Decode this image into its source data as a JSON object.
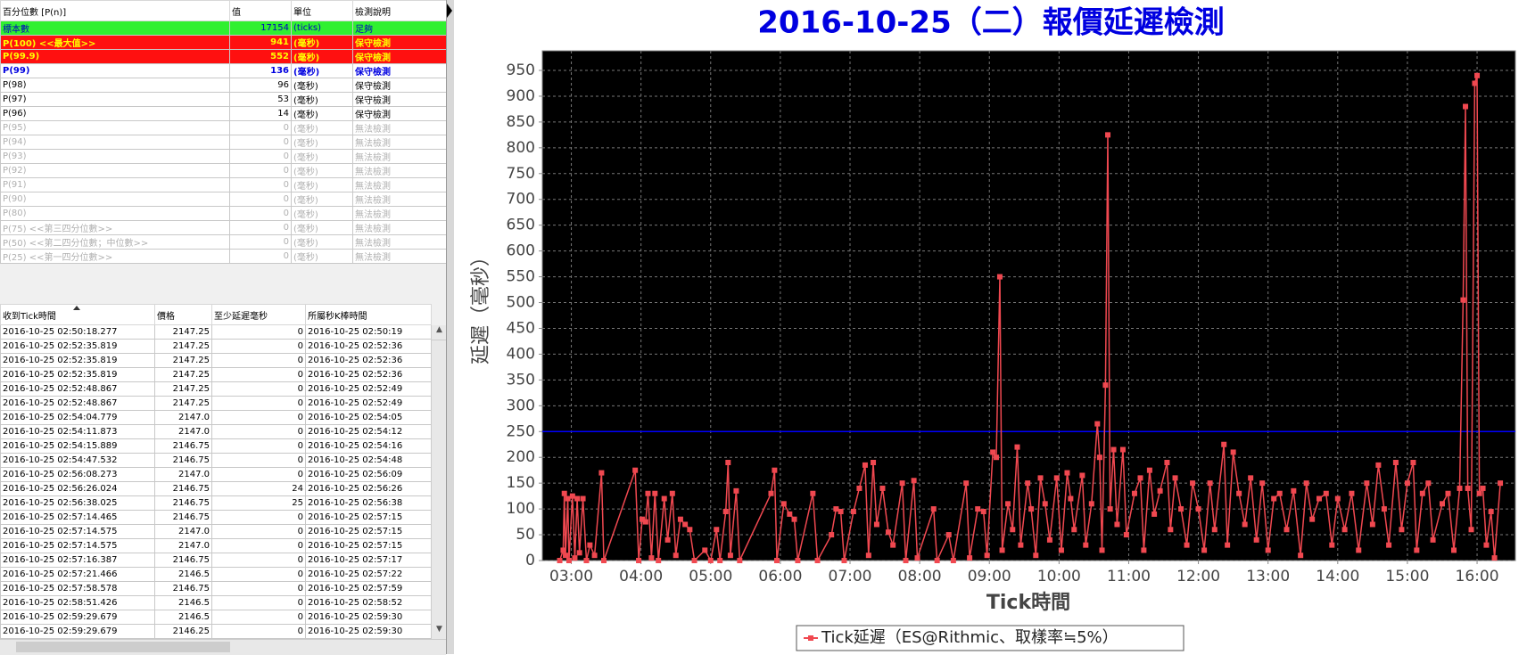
{
  "percentile_table": {
    "headers": [
      "百分位數 [P(n)]",
      "值",
      "單位",
      "檢測說明"
    ],
    "rows": [
      [
        "標本數",
        17154,
        "(ticks)",
        "足夠"
      ],
      [
        "P(100)  <<最大值>>",
        941,
        "(毫秒)",
        "保守檢測"
      ],
      [
        "P(99.9)",
        552,
        "(毫秒)",
        "保守檢測"
      ],
      [
        "P(99)",
        136,
        "(毫秒)",
        "保守檢測"
      ],
      [
        "P(98)",
        96,
        "(毫秒)",
        "保守檢測"
      ],
      [
        "P(97)",
        53,
        "(毫秒)",
        "保守檢測"
      ],
      [
        "P(96)",
        14,
        "(毫秒)",
        "保守檢測"
      ],
      [
        "P(95)",
        0,
        "(毫秒)",
        "無法檢測"
      ],
      [
        "P(94)",
        0,
        "(毫秒)",
        "無法檢測"
      ],
      [
        "P(93)",
        0,
        "(毫秒)",
        "無法檢測"
      ],
      [
        "P(92)",
        0,
        "(毫秒)",
        "無法檢測"
      ],
      [
        "P(91)",
        0,
        "(毫秒)",
        "無法檢測"
      ],
      [
        "P(90)",
        0,
        "(毫秒)",
        "無法檢測"
      ],
      [
        "P(80)",
        0,
        "(毫秒)",
        "無法檢測"
      ],
      [
        "P(75)  <<第三四分位數>>",
        0,
        "(毫秒)",
        "無法檢測"
      ],
      [
        "P(50)  <<第二四分位數；中位數>>",
        0,
        "(毫秒)",
        "無法檢測"
      ],
      [
        "P(25)  <<第一四分位數>>",
        0,
        "(毫秒)",
        "無法檢測"
      ]
    ]
  },
  "tick_table": {
    "headers": [
      "收到Tick時間",
      "價格",
      "至少延遲毫秒",
      "所屬秒K棒時間"
    ],
    "rows": [
      [
        "2016-10-25 02:50:18.277",
        "2147.25",
        "0",
        "2016-10-25 02:50:19"
      ],
      [
        "2016-10-25 02:52:35.819",
        "2147.25",
        "0",
        "2016-10-25 02:52:36"
      ],
      [
        "2016-10-25 02:52:35.819",
        "2147.25",
        "0",
        "2016-10-25 02:52:36"
      ],
      [
        "2016-10-25 02:52:35.819",
        "2147.25",
        "0",
        "2016-10-25 02:52:36"
      ],
      [
        "2016-10-25 02:52:48.867",
        "2147.25",
        "0",
        "2016-10-25 02:52:49"
      ],
      [
        "2016-10-25 02:52:48.867",
        "2147.25",
        "0",
        "2016-10-25 02:52:49"
      ],
      [
        "2016-10-25 02:54:04.779",
        "2147.0",
        "0",
        "2016-10-25 02:54:05"
      ],
      [
        "2016-10-25 02:54:11.873",
        "2147.0",
        "0",
        "2016-10-25 02:54:12"
      ],
      [
        "2016-10-25 02:54:15.889",
        "2146.75",
        "0",
        "2016-10-25 02:54:16"
      ],
      [
        "2016-10-25 02:54:47.532",
        "2146.75",
        "0",
        "2016-10-25 02:54:48"
      ],
      [
        "2016-10-25 02:56:08.273",
        "2147.0",
        "0",
        "2016-10-25 02:56:09"
      ],
      [
        "2016-10-25 02:56:26.024",
        "2146.75",
        "24",
        "2016-10-25 02:56:26"
      ],
      [
        "2016-10-25 02:56:38.025",
        "2146.75",
        "25",
        "2016-10-25 02:56:38"
      ],
      [
        "2016-10-25 02:57:14.465",
        "2146.75",
        "0",
        "2016-10-25 02:57:15"
      ],
      [
        "2016-10-25 02:57:14.575",
        "2147.0",
        "0",
        "2016-10-25 02:57:15"
      ],
      [
        "2016-10-25 02:57:14.575",
        "2147.0",
        "0",
        "2016-10-25 02:57:15"
      ],
      [
        "2016-10-25 02:57:16.387",
        "2146.75",
        "0",
        "2016-10-25 02:57:17"
      ],
      [
        "2016-10-25 02:57:21.466",
        "2146.5",
        "0",
        "2016-10-25 02:57:22"
      ],
      [
        "2016-10-25 02:57:58.578",
        "2146.75",
        "0",
        "2016-10-25 02:57:59"
      ],
      [
        "2016-10-25 02:58:51.426",
        "2146.5",
        "0",
        "2016-10-25 02:58:52"
      ],
      [
        "2016-10-25 02:59:29.679",
        "2146.5",
        "0",
        "2016-10-25 02:59:30"
      ],
      [
        "2016-10-25 02:59:29.679",
        "2146.25",
        "0",
        "2016-10-25 02:59:30"
      ]
    ]
  },
  "chart_data": {
    "type": "line",
    "title": "2016-10-25（二）報價延遲檢測",
    "x_label": "Tick時間",
    "y_label": "延遲（毫秒）",
    "xlim": [
      "02:35",
      "16:33"
    ],
    "xticks": [
      "03:00",
      "04:00",
      "05:00",
      "06:00",
      "07:00",
      "08:00",
      "09:00",
      "10:00",
      "11:00",
      "12:00",
      "13:00",
      "14:00",
      "15:00",
      "16:00"
    ],
    "ylim": [
      0,
      988
    ],
    "yticks": [
      0,
      50,
      100,
      150,
      200,
      250,
      300,
      350,
      400,
      450,
      500,
      550,
      600,
      650,
      700,
      750,
      800,
      850,
      900,
      950
    ],
    "grid": true,
    "background": "#000000",
    "reference_line": {
      "value": 250,
      "color": "#0000ff"
    },
    "legend": "bottom",
    "x": [
      "02:50",
      "02:53",
      "02:54",
      "02:55",
      "02:57",
      "02:58",
      "03:01",
      "03:03",
      "03:05",
      "03:07",
      "03:10",
      "03:13",
      "03:16",
      "03:20",
      "03:26",
      "03:28",
      "03:55",
      "03:58",
      "04:01",
      "04:04",
      "04:06",
      "04:09",
      "04:12",
      "04:15",
      "04:20",
      "04:23",
      "04:27",
      "04:30",
      "04:34",
      "04:38",
      "04:42",
      "04:46",
      "04:55",
      "05:00",
      "05:05",
      "05:08",
      "05:13",
      "05:15",
      "05:17",
      "05:22",
      "05:25",
      "05:52",
      "05:55",
      "05:57",
      "06:03",
      "06:08",
      "06:12",
      "06:15",
      "06:28",
      "06:32",
      "06:44",
      "06:48",
      "06:52",
      "06:55",
      "07:03",
      "07:08",
      "07:13",
      "07:16",
      "07:20",
      "07:23",
      "07:28",
      "07:33",
      "07:37",
      "07:45",
      "07:48",
      "07:55",
      "07:58",
      "08:12",
      "08:15",
      "08:25",
      "08:29",
      "08:40",
      "08:43",
      "08:50",
      "08:55",
      "08:58",
      "09:03",
      "09:06",
      "09:09",
      "09:11",
      "09:16",
      "09:20",
      "09:24",
      "09:27",
      "09:33",
      "09:36",
      "09:40",
      "09:44",
      "09:48",
      "09:52",
      "09:58",
      "10:02",
      "10:07",
      "10:10",
      "10:13",
      "10:20",
      "10:23",
      "10:28",
      "10:33",
      "10:35",
      "10:37",
      "10:40",
      "10:42",
      "10:44",
      "10:47",
      "10:50",
      "10:55",
      "10:58",
      "11:05",
      "11:10",
      "11:13",
      "11:18",
      "11:22",
      "11:27",
      "11:33",
      "11:36",
      "11:40",
      "11:45",
      "11:50",
      "11:55",
      "12:00",
      "12:05",
      "12:10",
      "12:14",
      "12:22",
      "12:25",
      "12:30",
      "12:35",
      "12:40",
      "12:45",
      "12:50",
      "12:55",
      "13:00",
      "13:05",
      "13:10",
      "13:16",
      "13:22",
      "13:28",
      "13:33",
      "13:38",
      "13:44",
      "13:50",
      "13:55",
      "14:00",
      "14:06",
      "14:12",
      "14:18",
      "14:25",
      "14:30",
      "14:35",
      "14:40",
      "14:44",
      "14:50",
      "14:55",
      "15:00",
      "15:05",
      "15:08",
      "15:13",
      "15:18",
      "15:22",
      "15:30",
      "15:35",
      "15:40",
      "15:45",
      "15:48",
      "15:50",
      "15:52",
      "15:55",
      "15:58",
      "16:00",
      "16:02",
      "16:05",
      "16:08",
      "16:12",
      "16:15",
      "16:20"
    ],
    "series": [
      {
        "name": "Tick延遲（ES@Rithmic、取樣率≒5%）",
        "color": "#f04850",
        "values": [
          0,
          20,
          130,
          10,
          120,
          0,
          125,
          5,
          120,
          15,
          120,
          0,
          30,
          10,
          170,
          0,
          175,
          0,
          80,
          75,
          130,
          5,
          130,
          0,
          120,
          40,
          130,
          10,
          80,
          70,
          60,
          0,
          20,
          0,
          60,
          0,
          95,
          190,
          10,
          135,
          0,
          130,
          175,
          0,
          110,
          90,
          80,
          0,
          130,
          0,
          50,
          100,
          95,
          0,
          95,
          140,
          185,
          10,
          190,
          70,
          140,
          55,
          30,
          150,
          0,
          155,
          5,
          100,
          0,
          50,
          0,
          150,
          5,
          100,
          95,
          10,
          210,
          200,
          550,
          20,
          110,
          60,
          220,
          30,
          150,
          100,
          10,
          160,
          110,
          40,
          160,
          20,
          170,
          120,
          60,
          165,
          30,
          110,
          265,
          200,
          20,
          340,
          825,
          100,
          215,
          70,
          215,
          50,
          130,
          160,
          20,
          175,
          90,
          135,
          190,
          60,
          160,
          100,
          30,
          150,
          100,
          20,
          150,
          60,
          225,
          30,
          210,
          130,
          70,
          160,
          40,
          150,
          20,
          120,
          130,
          60,
          135,
          10,
          150,
          80,
          120,
          130,
          30,
          120,
          60,
          130,
          20,
          150,
          70,
          185,
          100,
          30,
          190,
          60,
          150,
          190,
          20,
          130,
          150,
          40,
          110,
          130,
          20,
          140,
          505,
          880,
          140,
          60,
          925,
          940,
          130,
          140,
          30,
          95,
          5,
          150
        ]
      }
    ]
  }
}
